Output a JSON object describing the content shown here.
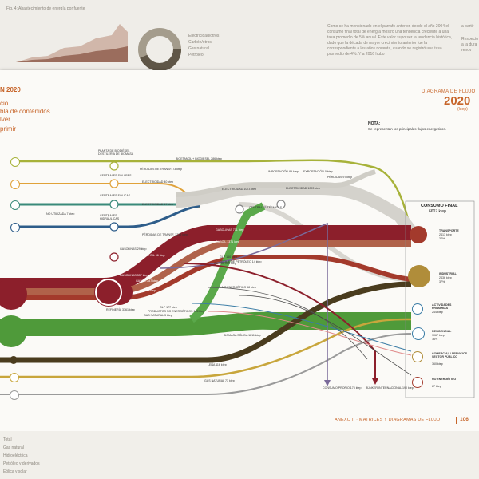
{
  "background_top": {
    "chart_caption": "Fig. 4: Abastecimiento de energía por fuente",
    "paragraph": "Como se ha mencionado en el párrafo anterior, desde el año 2004 el consumo final total de energía mostró una tendencia creciente a una tasa promedio de 5% anual. Este valor supo ser la tendencia histórica, dado que la década de mayor crecimiento anterior fue la correspondiente a los años noventa, cuando se registró una tasa promedio de 4%. Y a 2016 hubo",
    "right_fragment": "a partir",
    "right_fragment2": "Respecto a la dura renov",
    "legend_items": [
      "Electricidad/otros",
      "Carbón/otros",
      "Gas natural",
      "Petróleo"
    ]
  },
  "header_left": {
    "year_label": "N 2020",
    "menu_items": [
      "cio",
      "bla de contenidos",
      "lver"
    ],
    "print_label": "primir"
  },
  "header_right": {
    "title": "DIAGRAMA DE FLUJO",
    "year": "2020",
    "unit": "(ktep)"
  },
  "note": {
    "title": "NOTA:",
    "text": "Se representan los principales flujos energéticos."
  },
  "consumption": {
    "title": "CONSUMO FINAL",
    "value": "6607 ktep",
    "sectors": [
      {
        "label": "TRANSPORTE",
        "sub": "2413 ktep",
        "pct": "37%",
        "color": "#a33a2c",
        "icon": "truck-icon"
      },
      {
        "label": "INDUSTRIAL",
        "sub": "2436 ktep",
        "pct": "37%",
        "color": "#b08d3a",
        "icon": "factory-icon"
      },
      {
        "label": "ACTIVIDADES PRIMARIAS",
        "sub": "244 ktep",
        "pct": "4%",
        "color": "#3a7ca5",
        "icon": "tractor-icon"
      },
      {
        "label": "RESIDENCIAL",
        "sub": "1067 ktep",
        "pct": "16%",
        "color": "#3a7ca5",
        "icon": "house-icon"
      },
      {
        "label": "COMERCIAL / SERVICIOS SECTOR PÚBLICO",
        "sub": "360 ktep",
        "pct": "5%",
        "color": "#b08d3a",
        "icon": "building-icon"
      },
      {
        "label": "NO ENERGÉTICO",
        "sub": "87 ktep",
        "pct": "1%",
        "color": "#a33a2c",
        "icon": "barrel-icon"
      }
    ]
  },
  "sources": [
    {
      "label": "PLANTA DE BIODIÉSEL DESTILERÍA DE BIOMASA",
      "color": "#a7b23a"
    },
    {
      "label": "CENTRALES SOLARES",
      "color": "#e0a23a"
    },
    {
      "label": "CENTRALES EÓLICAS",
      "color": "#3a8a7a"
    },
    {
      "label": "CENTRALES HIDRÁULICAS",
      "color": "#2e5d8a"
    },
    {
      "label": "PETRÓLEO",
      "color": "#8c1f2b"
    },
    {
      "label": "BIOMASA",
      "color": "#4f9a3a"
    },
    {
      "label": "CARBÓN",
      "color": "#4a3c1e"
    },
    {
      "label": "OTROS",
      "color": "#c8a63c"
    },
    {
      "label": "GAS",
      "color": "#9a9a9a"
    }
  ],
  "flow_labels": [
    "BIOETANOL + BIODIÉSEL 286 ktep",
    "PÉRDIDAS DE TRANSF. 73 ktep",
    "ELECTRICIDAD 40 ktep",
    "ELECTRICIDAD 47 ktep",
    "ELECTRICIDAD 1073 ktep",
    "IMPORTACIÓN 89 ktep",
    "EXPORTACIÓN 0 ktep",
    "PÉRDIDAS 97 ktep",
    "ELECTRICIDAD 1093 ktep",
    "PÉRDIDAS DE TRANSF. 2236 ktep",
    "CENTRALES TÉRMICAS",
    "GASOLINAS 771 ktep",
    "GASOIL 1371 ktep",
    "GLP 160 ktep",
    "FUEL OIL 66 ktep",
    "GASOLINAS 29 ktep",
    "GASOIL 287 ktep",
    "GLP 34 ktep",
    "GASOLINAS 337 ktep",
    "GASOIL 280 ktep",
    "COQUE DE PETRÓLEO 14 ktep",
    "GLP 177 ktep",
    "GAS NATURAL 3 ktep",
    "NO ENERGÉTICO 58 ktep",
    "REFINERÍA 3361 ktep",
    "PRODUCTOS NO ENERGÉTICOS 125 ktep",
    "BIOMASA SÓLIDA 1211 ktep",
    "LEÑA 116 ktep",
    "GAS NATURAL 73 ktep",
    "CONSUMO PROPIO 175 ktep",
    "BÚNKER INTERNACIONAL 190 ktep",
    "NO UTILIZADA 7 ktep"
  ],
  "footer": {
    "text": "ANEXO II · MATRICES Y DIAGRAMAS DE FLUJO",
    "page": "106"
  },
  "bottom_table_rows": [
    "Total",
    "Gas natural",
    "Hidroeléctrica",
    "Petróleo y derivados",
    "Eólica y solar",
    "Leña"
  ]
}
